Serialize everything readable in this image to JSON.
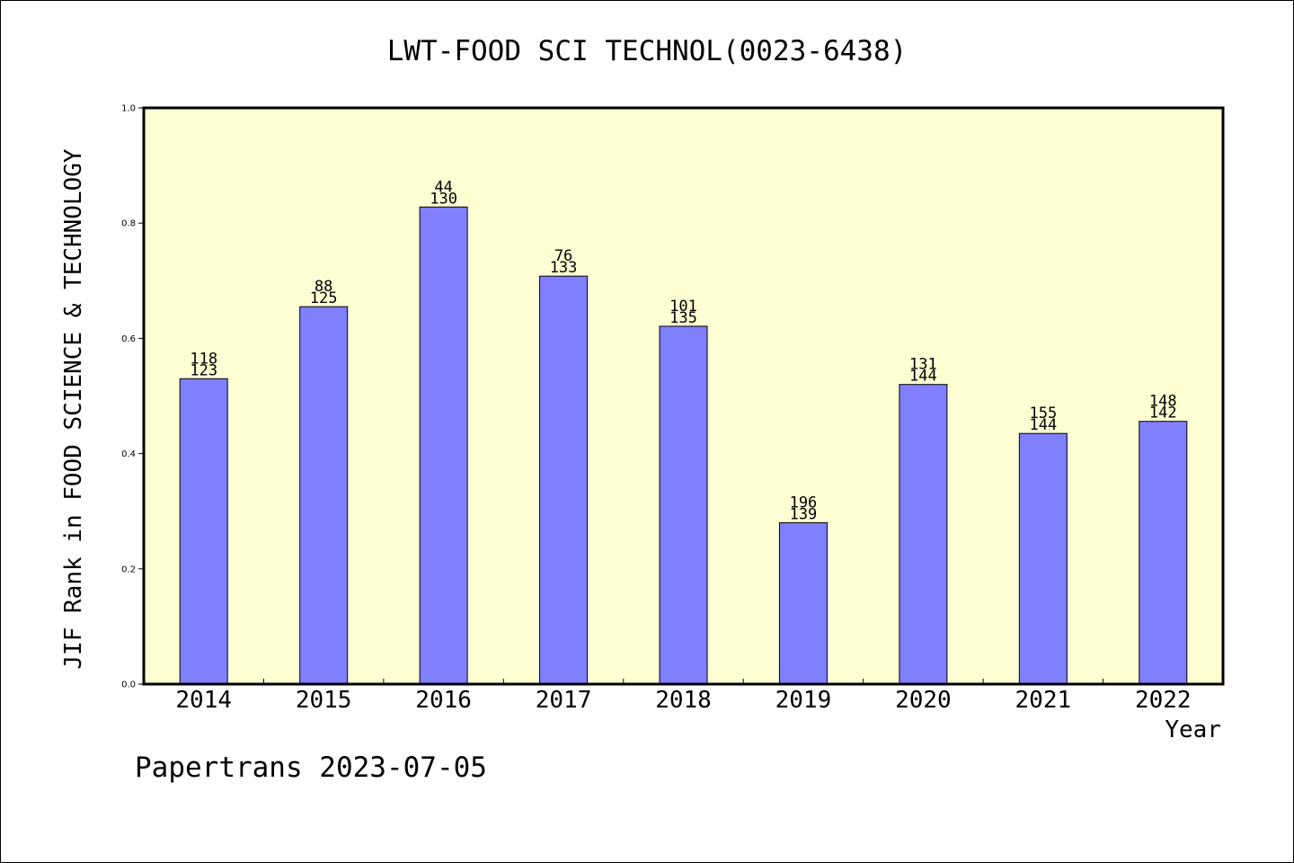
{
  "chart_data": {
    "type": "bar",
    "title": "LWT-FOOD SCI TECHNOL(0023-6438)",
    "xlabel": "Year",
    "ylabel": "JIF Rank in FOOD SCIENCE & TECHNOLOGY",
    "ylim": [
      0,
      1.0
    ],
    "yticks": [
      "0.0",
      "0.2",
      "0.4",
      "0.6",
      "0.8",
      "1.0"
    ],
    "categories": [
      "2014",
      "2015",
      "2016",
      "2017",
      "2018",
      "2019",
      "2020",
      "2021",
      "2022"
    ],
    "values": [
      0.53,
      0.655,
      0.828,
      0.708,
      0.621,
      0.28,
      0.52,
      0.435,
      0.456
    ],
    "labels_top": [
      "118",
      "88",
      "44",
      "76",
      "101",
      "196",
      "131",
      "155",
      "148"
    ],
    "labels_bottom": [
      "123",
      "125",
      "130",
      "133",
      "135",
      "139",
      "144",
      "144",
      "142"
    ],
    "grid": false,
    "colors": {
      "plot_bg": "#ffffd4",
      "bar": "#8080ff"
    }
  },
  "footer": "Papertrans 2023-07-05"
}
